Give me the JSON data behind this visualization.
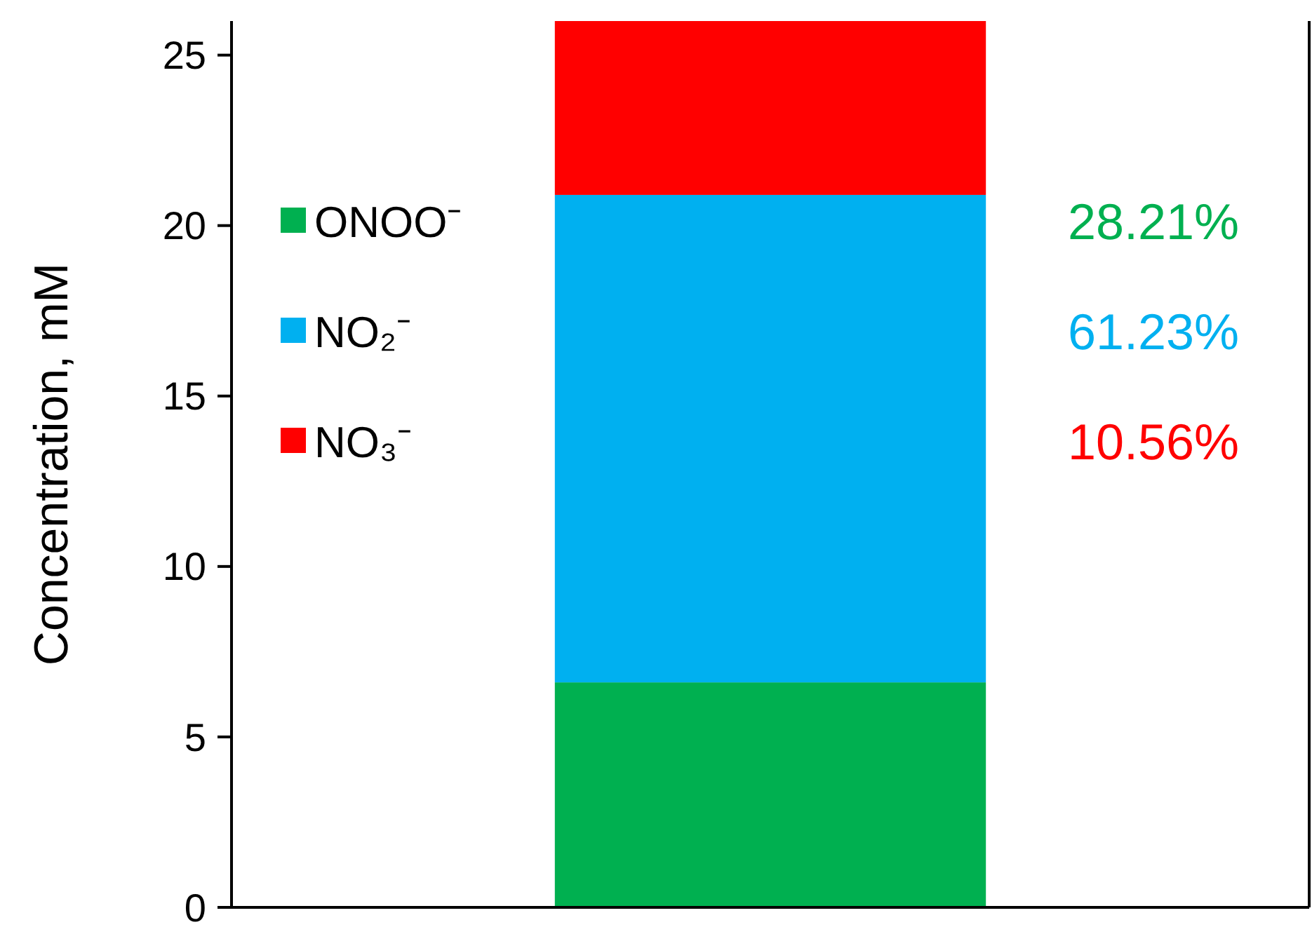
{
  "chart_data": {
    "type": "bar",
    "stacked": true,
    "categories": [
      null
    ],
    "ylabel": "Concentration, mM",
    "ylim": [
      0,
      26
    ],
    "yticks": [
      0,
      5,
      10,
      15,
      20,
      25
    ],
    "grid": false,
    "legend": "left",
    "series": [
      {
        "name": "ONOO⁻",
        "color": "#00b050",
        "values": [
          6.6
        ]
      },
      {
        "name": "NO₂⁻",
        "color": "#00b0f0",
        "values": [
          14.3
        ]
      },
      {
        "name": "NO₃⁻",
        "color": "#ff0000",
        "values": [
          5.1
        ]
      }
    ],
    "annotations": [
      "28.21%",
      "61.23%",
      "10.56%"
    ]
  }
}
